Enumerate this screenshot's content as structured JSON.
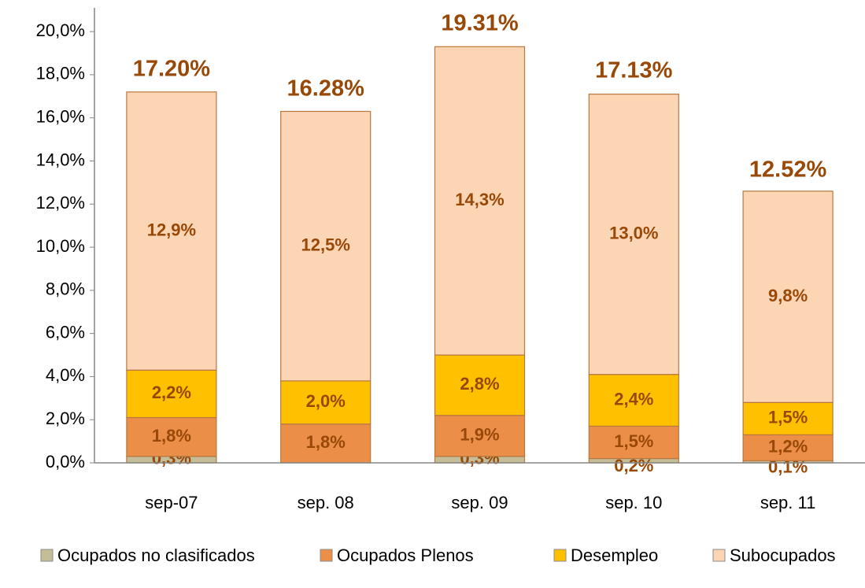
{
  "chart_data": {
    "type": "stacked-bar",
    "categories": [
      "sep-07",
      "sep. 08",
      "sep. 09",
      "sep. 10",
      "sep. 11"
    ],
    "series": [
      {
        "name": "Ocupados no clasificados",
        "color": "#c4bd97",
        "values": [
          0.3,
          0,
          0.3,
          0.2,
          0.1
        ],
        "value_labels": [
          "0,3%",
          null,
          "0,3%",
          "0,2%",
          "0,1%"
        ]
      },
      {
        "name": "Ocupados Plenos",
        "color": "#eb8e47",
        "values": [
          1.8,
          1.8,
          1.9,
          1.5,
          1.2
        ],
        "value_labels": [
          "1,8%",
          "1,8%",
          "1,9%",
          "1,5%",
          "1,2%"
        ]
      },
      {
        "name": "Desempleo",
        "color": "#ffc000",
        "values": [
          2.2,
          2.0,
          2.8,
          2.4,
          1.5
        ],
        "value_labels": [
          "2,2%",
          "2,0%",
          "2,8%",
          "2,4%",
          "1,5%"
        ]
      },
      {
        "name": "Subocupados",
        "color": "#fcd5b5",
        "values": [
          12.9,
          12.5,
          14.3,
          13.0,
          9.8
        ],
        "value_labels": [
          "12,9%",
          "12,5%",
          "14,3%",
          "13,0%",
          "9,8%"
        ]
      }
    ],
    "totals": [
      17.2,
      16.28,
      19.31,
      17.13,
      12.52
    ],
    "total_labels": [
      "17.20%",
      "16.28%",
      "19.31%",
      "17.13%",
      "12.52%"
    ],
    "ylim": [
      0,
      21.1
    ],
    "yticks": [
      {
        "value": 0,
        "label": "0,0%"
      },
      {
        "value": 2,
        "label": "2,0%"
      },
      {
        "value": 4,
        "label": "4,0%"
      },
      {
        "value": 6,
        "label": "6,0%"
      },
      {
        "value": 8,
        "label": "8,0%"
      },
      {
        "value": 10,
        "label": "10,0%"
      },
      {
        "value": 12,
        "label": "12,0%"
      },
      {
        "value": 14,
        "label": "14,0%"
      },
      {
        "value": 16,
        "label": "16,0%"
      },
      {
        "value": 18,
        "label": "18,0%"
      },
      {
        "value": 20,
        "label": "20,0%"
      }
    ],
    "legend": "bottom"
  }
}
